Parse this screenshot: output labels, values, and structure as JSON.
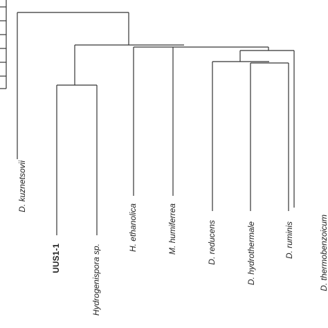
{
  "leaves": [
    {
      "label": "D. kuznetsovii"
    },
    {
      "label": "UUS1-1"
    },
    {
      "label": "Hydrogenispora sp."
    },
    {
      "label": "H. ethanolica"
    },
    {
      "label": "M. humiferrea"
    },
    {
      "label": "D. reducens"
    },
    {
      "label": "D. hydrothermale"
    },
    {
      "label": "D. ruminis"
    },
    {
      "label": "D. thermobenzoicum"
    }
  ]
}
